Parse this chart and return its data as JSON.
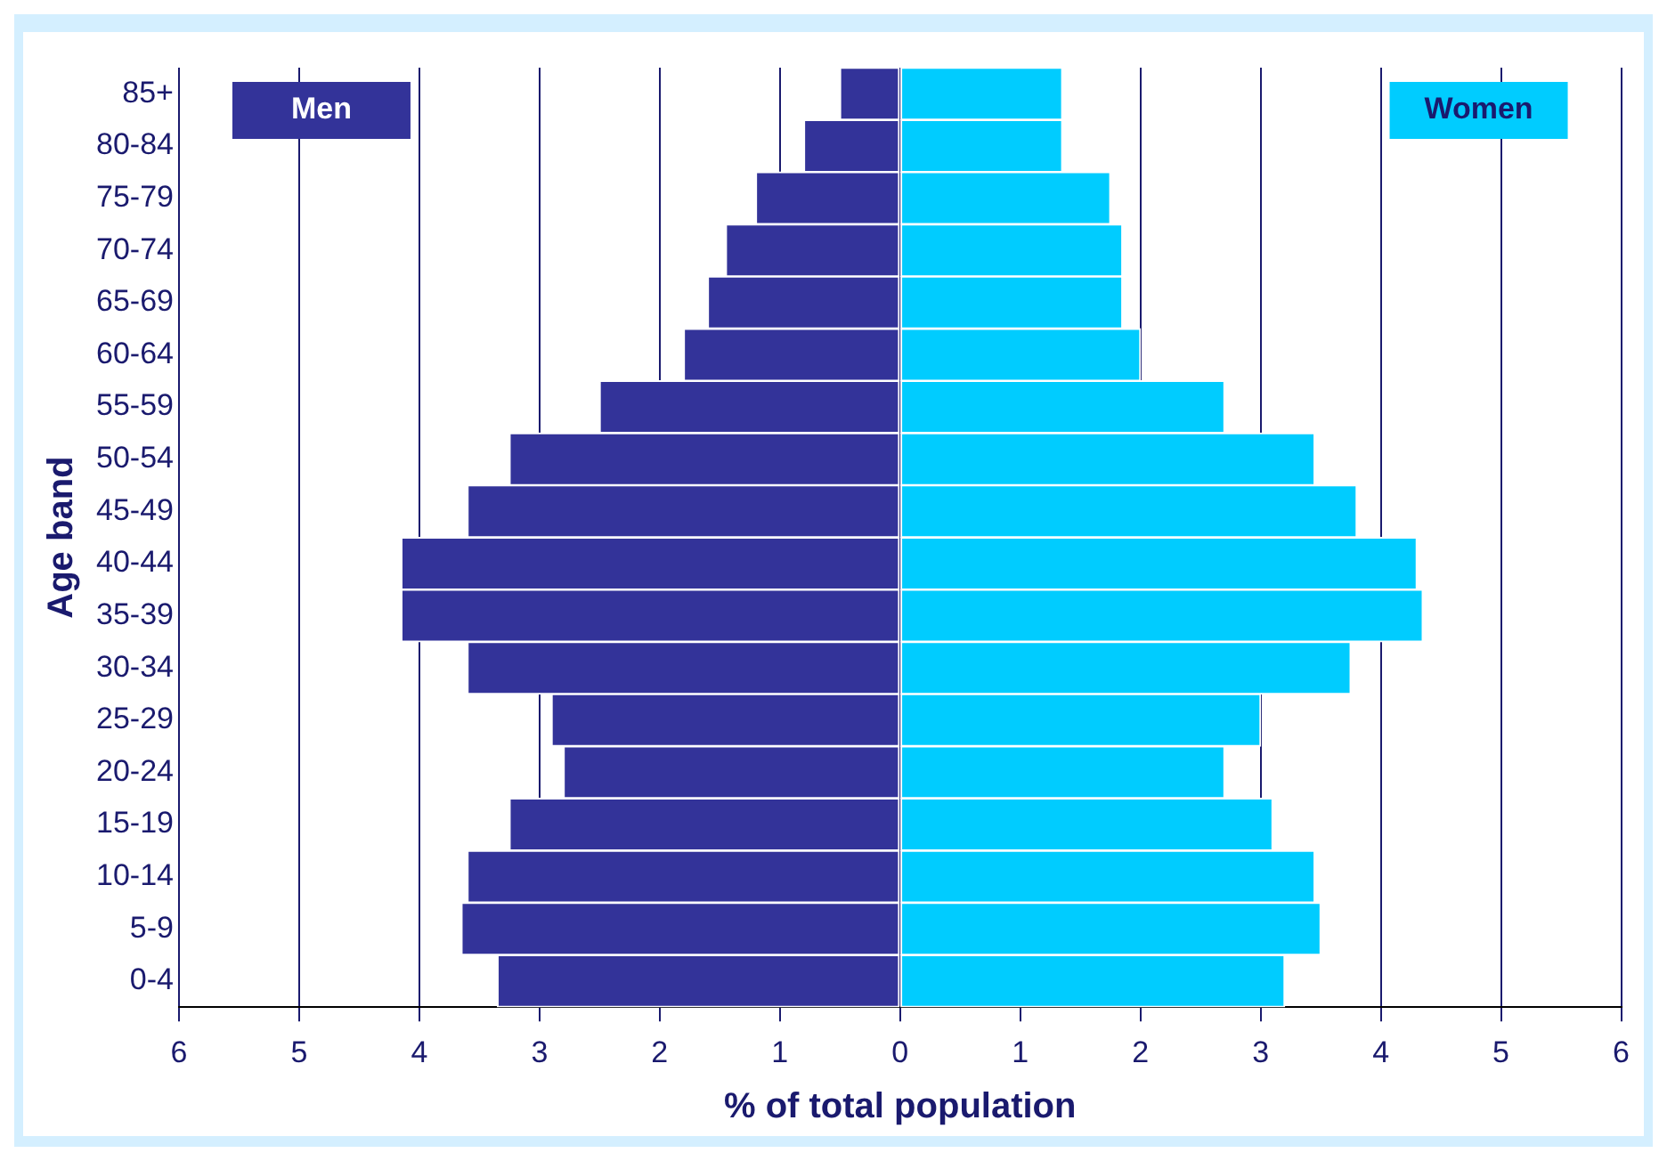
{
  "chart_data": {
    "type": "bar",
    "orientation": "horizontal",
    "stacked": true,
    "xlabel": "% of total population",
    "ylabel": "Age band",
    "categories": [
      "85+",
      "80-84",
      "75-79",
      "70-74",
      "65-69",
      "60-64",
      "55-59",
      "50-54",
      "45-49",
      "40-44",
      "35-39",
      "30-34",
      "25-29",
      "20-24",
      "15-19",
      "10-14",
      "5-9",
      "0-4"
    ],
    "series": [
      {
        "name": "Men",
        "color": "#333399",
        "values": [
          -0.5,
          -0.8,
          -1.2,
          -1.45,
          -1.6,
          -1.8,
          -2.5,
          -3.25,
          -3.6,
          -4.15,
          -4.15,
          -3.6,
          -2.9,
          -2.8,
          -3.25,
          -3.6,
          -3.65,
          -3.35
        ]
      },
      {
        "name": "Women",
        "color": "#00ccff",
        "values": [
          1.35,
          1.35,
          1.75,
          1.85,
          1.85,
          2.0,
          2.7,
          3.45,
          3.8,
          4.3,
          4.35,
          3.75,
          3.0,
          2.7,
          3.1,
          3.45,
          3.5,
          3.2
        ]
      }
    ],
    "xlim": [
      -6,
      6
    ],
    "xticks": [
      {
        "value": -6,
        "label": "6"
      },
      {
        "value": -5,
        "label": "5"
      },
      {
        "value": -4,
        "label": "4"
      },
      {
        "value": -3,
        "label": "3"
      },
      {
        "value": -2,
        "label": "2"
      },
      {
        "value": -1,
        "label": "1"
      },
      0,
      1,
      2,
      3,
      4,
      5,
      6
    ],
    "grid": "x",
    "legend": false
  }
}
